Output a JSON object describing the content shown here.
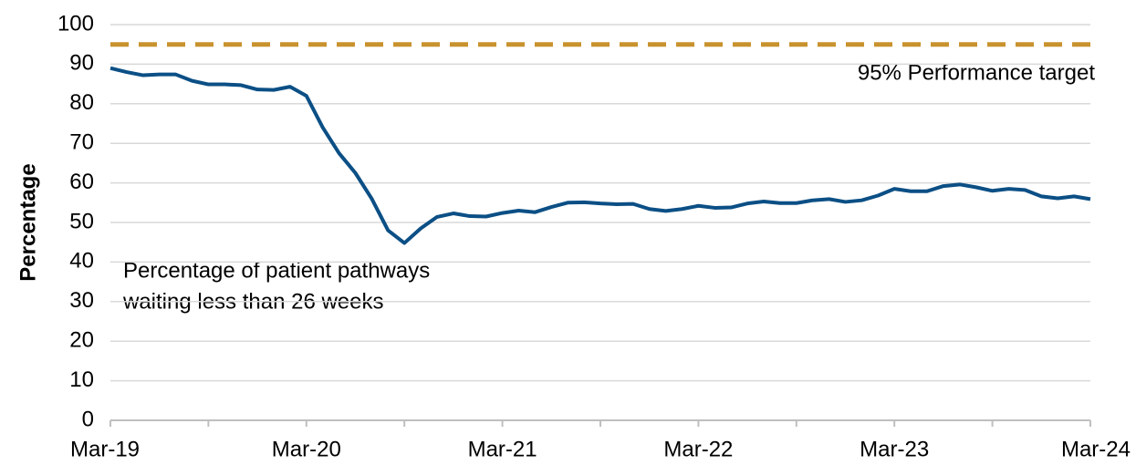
{
  "chart_data": {
    "type": "line",
    "categories": [
      "Mar-19",
      null,
      null,
      null,
      null,
      null,
      null,
      null,
      null,
      null,
      null,
      null,
      "Mar-20",
      null,
      null,
      null,
      null,
      null,
      null,
      null,
      null,
      null,
      null,
      null,
      "Mar-21",
      null,
      null,
      null,
      null,
      null,
      null,
      null,
      null,
      null,
      null,
      null,
      "Mar-22",
      null,
      null,
      null,
      null,
      null,
      null,
      null,
      null,
      null,
      null,
      null,
      "Mar-23",
      null,
      null,
      null,
      null,
      null,
      null,
      null,
      null,
      null,
      null,
      null,
      "Mar-24"
    ],
    "series": [
      {
        "name": "Percentage of patient pathways waiting less than 26 weeks",
        "color": "#0b4f85",
        "values": [
          89,
          88,
          87.2,
          87.4,
          87.4,
          85.8,
          84.9,
          84.9,
          84.7,
          83.6,
          83.5,
          84.3,
          82,
          74,
          67.5,
          62.5,
          56,
          48,
          44.8,
          48.5,
          51.4,
          52.3,
          51.6,
          51.5,
          52.4,
          53,
          52.6,
          53.9,
          55,
          55.1,
          54.8,
          54.6,
          54.7,
          53.4,
          52.9,
          53.4,
          54.2,
          53.7,
          53.8,
          54.8,
          55.3,
          54.9,
          54.9,
          55.6,
          55.9,
          55.2,
          55.6,
          56.8,
          58.5,
          57.9,
          57.9,
          59.2,
          59.6,
          58.9,
          58.0,
          58.5,
          58.2,
          56.6,
          56.1,
          56.6,
          55.9
        ]
      }
    ],
    "annotation": [
      "Percentage of patient pathways",
      "waiting less than 26 weeks"
    ],
    "target": {
      "value": 95,
      "label": "95% Performance target",
      "color": "#c8922e"
    },
    "ylabel": "Percentage",
    "ylim": [
      0,
      100
    ],
    "yticks": [
      0,
      10,
      20,
      30,
      40,
      50,
      60,
      70,
      80,
      90,
      100
    ],
    "grid": true
  }
}
